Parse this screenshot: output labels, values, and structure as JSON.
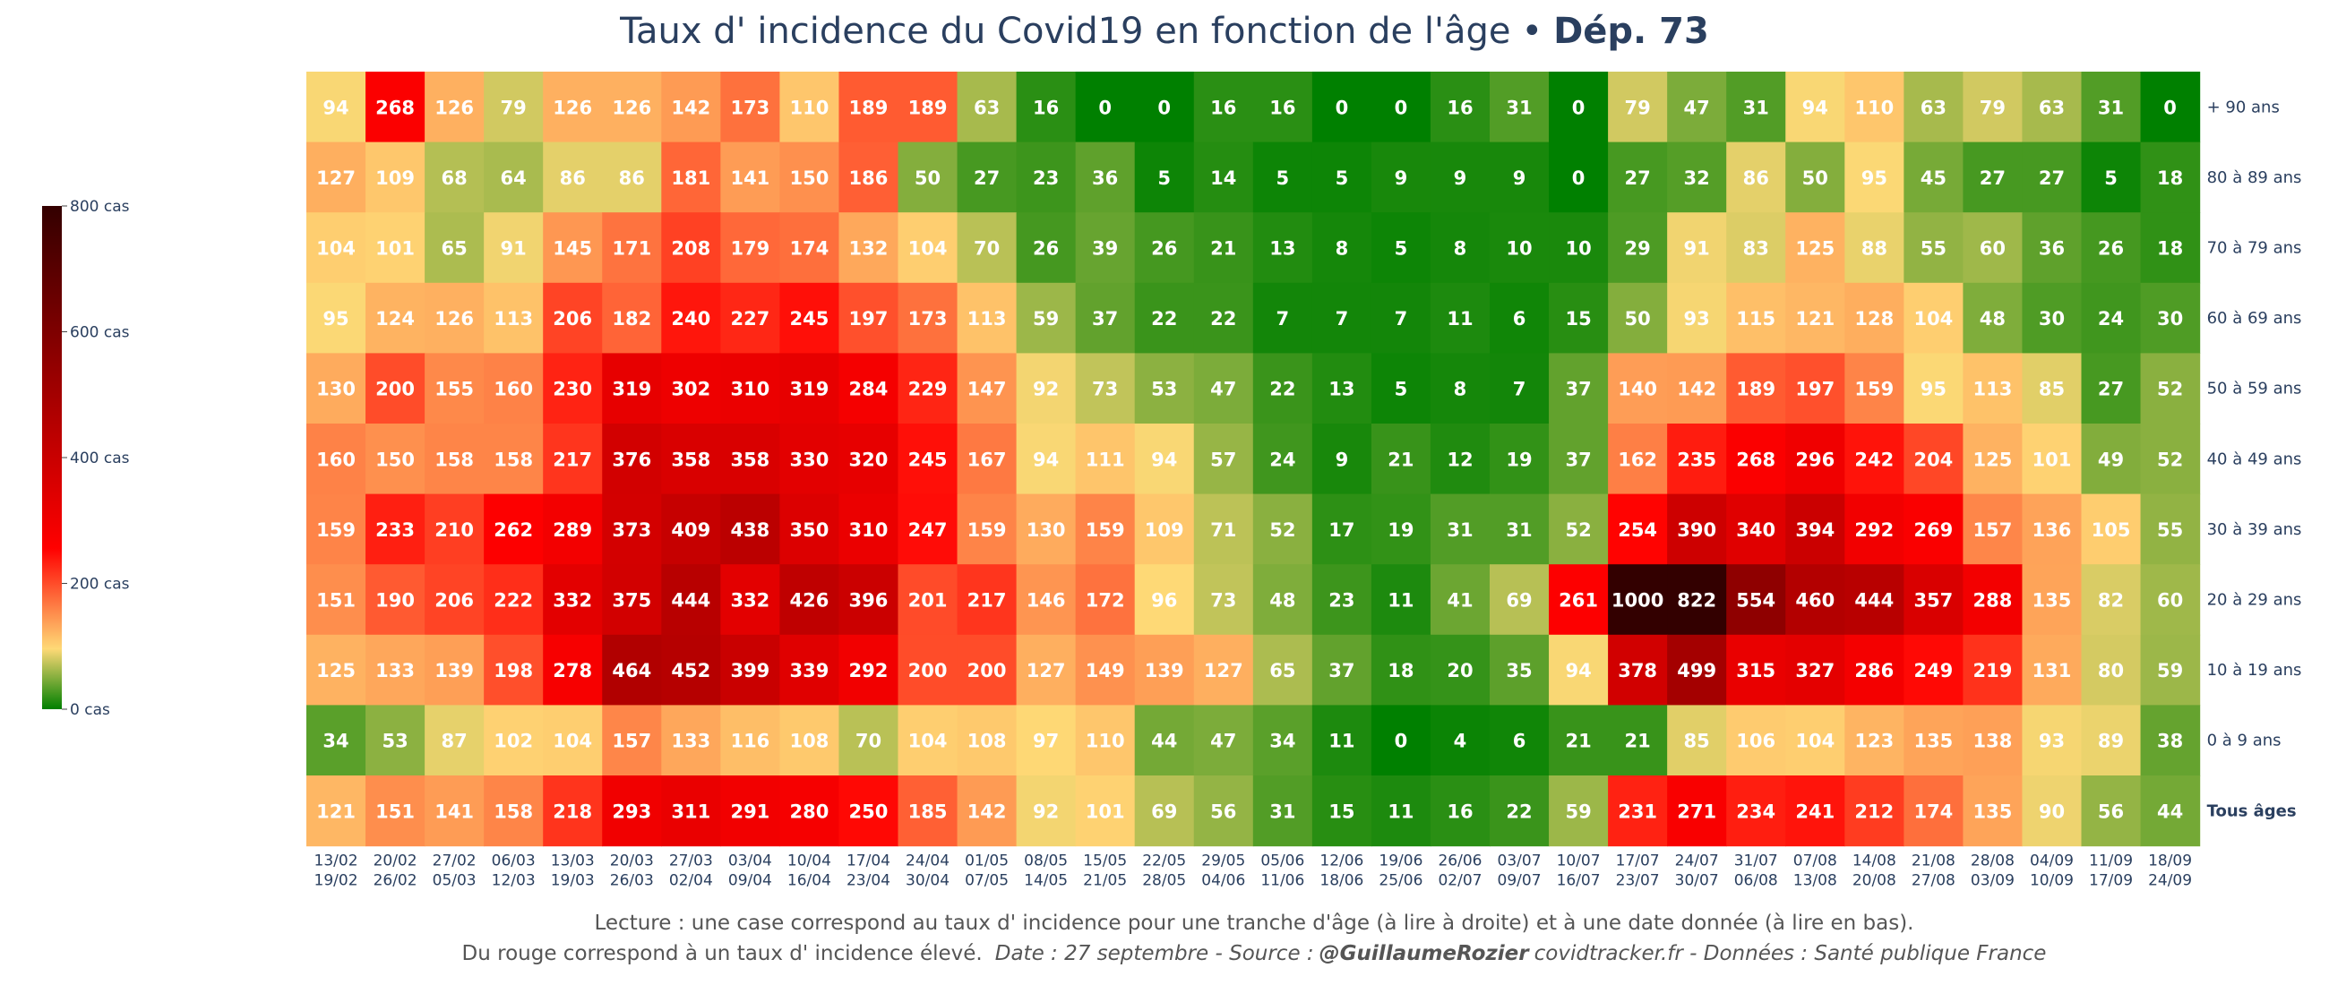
{
  "chart_data": {
    "type": "heatmap",
    "title": "Taux d' incidence du Covid19 en fonction de l'âge",
    "title_separator": "•",
    "title_bold": "Dép. 73",
    "rows": [
      "+ 90 ans",
      "80 à 89 ans",
      "70 à 79 ans",
      "60 à 69 ans",
      "50 à 59 ans",
      "40 à 49 ans",
      "30 à 39 ans",
      "20 à 29 ans",
      "10 à 19 ans",
      "0 à 9 ans",
      "Tous âges"
    ],
    "columns": [
      {
        "start": "13/02",
        "end": "19/02"
      },
      {
        "start": "20/02",
        "end": "26/02"
      },
      {
        "start": "27/02",
        "end": "05/03"
      },
      {
        "start": "06/03",
        "end": "12/03"
      },
      {
        "start": "13/03",
        "end": "19/03"
      },
      {
        "start": "20/03",
        "end": "26/03"
      },
      {
        "start": "27/03",
        "end": "02/04"
      },
      {
        "start": "03/04",
        "end": "09/04"
      },
      {
        "start": "10/04",
        "end": "16/04"
      },
      {
        "start": "17/04",
        "end": "23/04"
      },
      {
        "start": "24/04",
        "end": "30/04"
      },
      {
        "start": "01/05",
        "end": "07/05"
      },
      {
        "start": "08/05",
        "end": "14/05"
      },
      {
        "start": "15/05",
        "end": "21/05"
      },
      {
        "start": "22/05",
        "end": "28/05"
      },
      {
        "start": "29/05",
        "end": "04/06"
      },
      {
        "start": "05/06",
        "end": "11/06"
      },
      {
        "start": "12/06",
        "end": "18/06"
      },
      {
        "start": "19/06",
        "end": "25/06"
      },
      {
        "start": "26/06",
        "end": "02/07"
      },
      {
        "start": "03/07",
        "end": "09/07"
      },
      {
        "start": "10/07",
        "end": "16/07"
      },
      {
        "start": "17/07",
        "end": "23/07"
      },
      {
        "start": "24/07",
        "end": "30/07"
      },
      {
        "start": "31/07",
        "end": "06/08"
      },
      {
        "start": "07/08",
        "end": "13/08"
      },
      {
        "start": "14/08",
        "end": "20/08"
      },
      {
        "start": "21/08",
        "end": "27/08"
      },
      {
        "start": "28/08",
        "end": "03/09"
      },
      {
        "start": "04/09",
        "end": "10/09"
      },
      {
        "start": "11/09",
        "end": "17/09"
      },
      {
        "start": "18/09",
        "end": "24/09"
      }
    ],
    "values": [
      [
        94,
        268,
        126,
        79,
        126,
        126,
        142,
        173,
        110,
        189,
        189,
        63,
        16,
        0,
        0,
        16,
        16,
        0,
        0,
        16,
        31,
        0,
        79,
        47,
        31,
        94,
        110,
        63,
        79,
        63,
        31,
        0
      ],
      [
        127,
        109,
        68,
        64,
        86,
        86,
        181,
        141,
        150,
        186,
        50,
        27,
        23,
        36,
        5,
        14,
        5,
        5,
        9,
        9,
        9,
        0,
        27,
        32,
        86,
        50,
        95,
        45,
        27,
        27,
        5,
        18
      ],
      [
        104,
        101,
        65,
        91,
        145,
        171,
        208,
        179,
        174,
        132,
        104,
        70,
        26,
        39,
        26,
        21,
        13,
        8,
        5,
        8,
        10,
        10,
        29,
        91,
        83,
        125,
        88,
        55,
        60,
        36,
        26,
        18
      ],
      [
        95,
        124,
        126,
        113,
        206,
        182,
        240,
        227,
        245,
        197,
        173,
        113,
        59,
        37,
        22,
        22,
        7,
        7,
        7,
        11,
        6,
        15,
        50,
        93,
        115,
        121,
        128,
        104,
        48,
        30,
        24,
        30
      ],
      [
        130,
        200,
        155,
        160,
        230,
        319,
        302,
        310,
        319,
        284,
        229,
        147,
        92,
        73,
        53,
        47,
        22,
        13,
        5,
        8,
        7,
        37,
        140,
        142,
        189,
        197,
        159,
        95,
        113,
        85,
        27,
        52
      ],
      [
        160,
        150,
        158,
        158,
        217,
        376,
        358,
        358,
        330,
        320,
        245,
        167,
        94,
        111,
        94,
        57,
        24,
        9,
        21,
        12,
        19,
        37,
        162,
        235,
        268,
        296,
        242,
        204,
        125,
        101,
        49,
        52
      ],
      [
        159,
        233,
        210,
        262,
        289,
        373,
        409,
        438,
        350,
        310,
        247,
        159,
        130,
        159,
        109,
        71,
        52,
        17,
        19,
        31,
        31,
        52,
        254,
        390,
        340,
        394,
        292,
        269,
        157,
        136,
        105,
        55
      ],
      [
        151,
        190,
        206,
        222,
        332,
        375,
        444,
        332,
        426,
        396,
        201,
        217,
        146,
        172,
        96,
        73,
        48,
        23,
        11,
        41,
        69,
        261,
        1000,
        822,
        554,
        460,
        444,
        357,
        288,
        135,
        82,
        60
      ],
      [
        125,
        133,
        139,
        198,
        278,
        464,
        452,
        399,
        339,
        292,
        200,
        200,
        127,
        149,
        139,
        127,
        65,
        37,
        18,
        20,
        35,
        94,
        378,
        499,
        315,
        327,
        286,
        249,
        219,
        131,
        80,
        59
      ],
      [
        34,
        53,
        87,
        102,
        104,
        157,
        133,
        116,
        108,
        70,
        104,
        108,
        97,
        110,
        44,
        47,
        34,
        11,
        0,
        4,
        6,
        21,
        21,
        85,
        106,
        104,
        123,
        135,
        138,
        93,
        89,
        38
      ],
      [
        121,
        151,
        141,
        158,
        218,
        293,
        311,
        291,
        280,
        250,
        185,
        142,
        92,
        101,
        69,
        56,
        31,
        15,
        11,
        16,
        22,
        59,
        231,
        271,
        234,
        241,
        212,
        174,
        135,
        90,
        56,
        44
      ]
    ],
    "colorbar": {
      "range": [
        0,
        800
      ],
      "ticks": [
        "800 cas",
        "600 cas",
        "400 cas",
        "200 cas",
        "0 cas"
      ],
      "tick_values": [
        800,
        600,
        400,
        200,
        0
      ],
      "colors": {
        "green": "#008000",
        "yellow": "#fed976",
        "red": "#ff0000",
        "dark": "#330000"
      }
    },
    "footer": {
      "line1": "Lecture : une case correspond au taux d' incidence pour une tranche d'âge (à lire à droite) et à une date donnée (à lire en bas).",
      "line2_text": "Du rouge correspond à un taux d' incidence élevé.",
      "line2_date": "Date : 27 septembre - Source :",
      "line2_author": "@GuillaumeRozier",
      "line2_rest": "covidtracker.fr - Données : Santé publique France"
    }
  }
}
